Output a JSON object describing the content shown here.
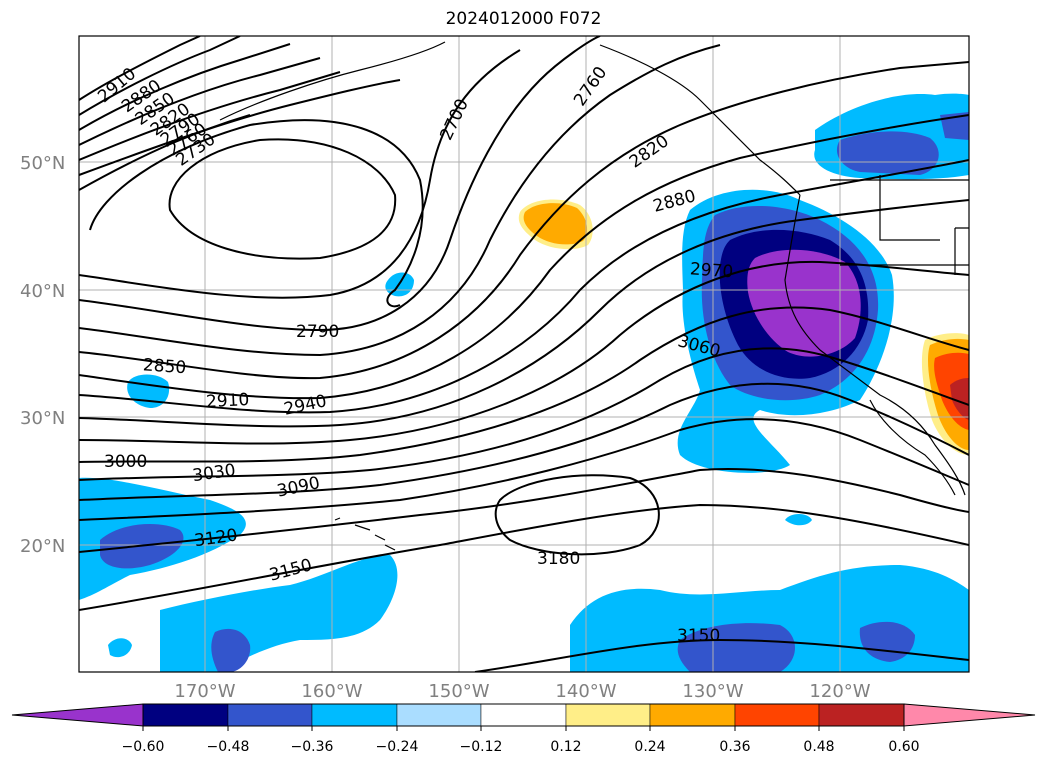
{
  "title": "2024012000 F072",
  "lat_labels": [
    "50°N",
    "40°N",
    "30°N",
    "20°N"
  ],
  "lon_labels": [
    "170°W",
    "160°W",
    "150°W",
    "140°W",
    "130°W",
    "120°W"
  ],
  "contour_labels": [
    "2910",
    "2880",
    "2850",
    "2820",
    "2790",
    "2760",
    "2730",
    "2700",
    "2760",
    "2820",
    "2880",
    "2970",
    "2790",
    "2850",
    "2910",
    "2940",
    "3060",
    "3000",
    "3030",
    "3090",
    "3120",
    "3150",
    "3180",
    "3150"
  ],
  "colorbar": {
    "ticks": [
      "−0.60",
      "−0.48",
      "−0.36",
      "−0.24",
      "−0.12",
      "0.12",
      "0.24",
      "0.36",
      "0.48",
      "0.60"
    ],
    "colors": [
      "#9933cc",
      "#000080",
      "#3355cc",
      "#00bbff",
      "#aaddff",
      "#ffffff",
      "#ffee88",
      "#ffaa00",
      "#ff4400",
      "#bb2222",
      "#ff88aa"
    ]
  },
  "colors": {
    "purple": "#9933cc",
    "navy": "#000080",
    "blue": "#3355cc",
    "cyan": "#00bbff",
    "lightblue": "#aaddff",
    "yellow": "#ffee88",
    "orange": "#ffaa00",
    "redorange": "#ff4400",
    "darkred": "#bb2222"
  }
}
